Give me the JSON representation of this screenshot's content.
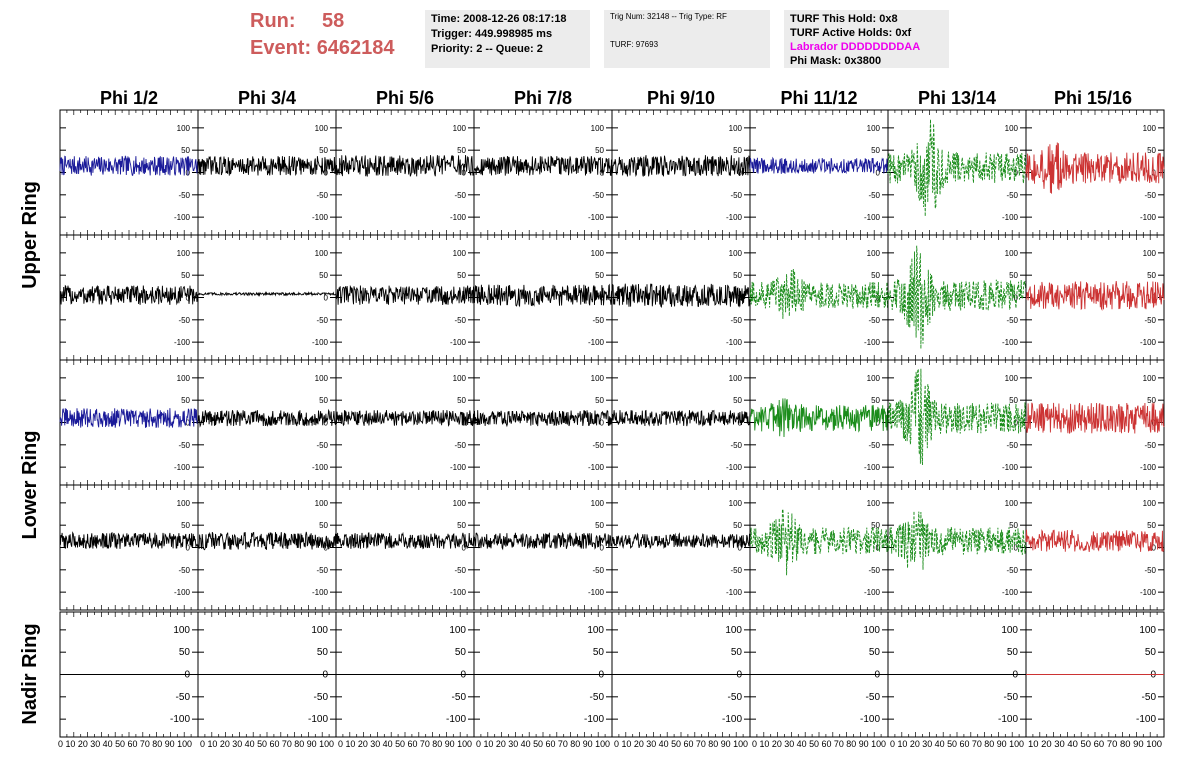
{
  "header": {
    "run_label": "Run:",
    "run_value": "58",
    "event_label": "Event:",
    "event_value": "6462184",
    "time": "Time: 2008-12-26 08:17:18",
    "trigger": "Trigger: 449.998985 ms",
    "priority_queue": "Priority: 2 -- Queue: 2",
    "trig_num_type": "Trig Num: 32148 -- Trig Type: RF",
    "turf": "TURF: 97693",
    "turf_this_hold": "TURF This Hold: 0x8",
    "turf_active_holds": "TURF Active Holds: 0xf",
    "labrador": "Labrador DDDDDDDDAA",
    "phi_mask": "Phi Mask: 0x3800"
  },
  "phi_headers": [
    "Phi 1/2",
    "Phi 3/4",
    "Phi 5/6",
    "Phi 7/8",
    "Phi 9/10",
    "Phi 11/12",
    "Phi 13/14",
    "Phi 15/16"
  ],
  "ring_labels": [
    "Upper Ring",
    "Lower Ring",
    "Nadir Ring"
  ],
  "colors": {
    "red": "#cc3333",
    "blue": "#1a1a99",
    "green": "#1a8c1a",
    "black": "#000000"
  },
  "chart_data": {
    "type": "line",
    "title": "",
    "xlim": [
      0,
      100
    ],
    "ylim": [
      -140,
      140
    ],
    "y_ticks": [
      -100,
      -50,
      0,
      50,
      100
    ],
    "x_tick_labels": "0 10 20 30 40 50 60 70 80 90 100",
    "x_tick_labels_last_panel": "10 20 30 40 50 60 70 80 90 100",
    "rows": [
      {
        "ring": "Upper Ring",
        "panels": [
          {
            "phi": "Phi 1/2",
            "color": "blue",
            "style": "solid",
            "amp": 22,
            "offset": 15
          },
          {
            "phi": "Phi 3/4",
            "color": "black",
            "style": "solid",
            "amp": 22,
            "offset": 15
          },
          {
            "phi": "Phi 5/6",
            "color": "black",
            "style": "solid",
            "amp": 24,
            "offset": 15
          },
          {
            "phi": "Phi 7/8",
            "color": "black",
            "style": "solid",
            "amp": 22,
            "offset": 15
          },
          {
            "phi": "Phi 9/10",
            "color": "black",
            "style": "solid",
            "amp": 24,
            "offset": 15
          },
          {
            "phi": "Phi 11/12",
            "color": "blue",
            "style": "solid",
            "amp": 18,
            "offset": 15
          },
          {
            "phi": "Phi 13/14",
            "color": "green",
            "style": "dashed",
            "amp": 35,
            "offset": 10,
            "peak": 30,
            "peak_amp": 120
          },
          {
            "phi": "Phi 15/16",
            "color": "red",
            "style": "solid",
            "amp": 35,
            "offset": 10,
            "peak": 20,
            "peak_amp": 60
          }
        ]
      },
      {
        "ring": "Upper Ring",
        "panels": [
          {
            "phi": "Phi 1/2",
            "color": "black",
            "style": "solid",
            "amp": 22,
            "offset": 5
          },
          {
            "phi": "Phi 3/4",
            "color": "black",
            "style": "solid",
            "amp": 3,
            "offset": 8
          },
          {
            "phi": "Phi 5/6",
            "color": "black",
            "style": "solid",
            "amp": 22,
            "offset": 5
          },
          {
            "phi": "Phi 7/8",
            "color": "black",
            "style": "solid",
            "amp": 24,
            "offset": 5
          },
          {
            "phi": "Phi 9/10",
            "color": "black",
            "style": "solid",
            "amp": 26,
            "offset": 5
          },
          {
            "phi": "Phi 11/12",
            "color": "green",
            "style": "dashed",
            "amp": 30,
            "offset": 5,
            "peak": 28,
            "peak_amp": 65
          },
          {
            "phi": "Phi 13/14",
            "color": "green",
            "style": "dashed",
            "amp": 35,
            "offset": 5,
            "peak": 22,
            "peak_amp": 130
          },
          {
            "phi": "Phi 15/16",
            "color": "red",
            "style": "solid",
            "amp": 32,
            "offset": 5
          }
        ]
      },
      {
        "ring": "Lower Ring",
        "panels": [
          {
            "phi": "Phi 1/2",
            "color": "blue",
            "style": "solid",
            "amp": 22,
            "offset": 10
          },
          {
            "phi": "Phi 3/4",
            "color": "black",
            "style": "solid",
            "amp": 18,
            "offset": 10
          },
          {
            "phi": "Phi 5/6",
            "color": "black",
            "style": "solid",
            "amp": 18,
            "offset": 10
          },
          {
            "phi": "Phi 7/8",
            "color": "black",
            "style": "solid",
            "amp": 18,
            "offset": 10
          },
          {
            "phi": "Phi 9/10",
            "color": "black",
            "style": "solid",
            "amp": 18,
            "offset": 10
          },
          {
            "phi": "Phi 11/12",
            "color": "green",
            "style": "solid",
            "amp": 30,
            "offset": 10,
            "peak": 25,
            "peak_amp": 45
          },
          {
            "phi": "Phi 13/14",
            "color": "green",
            "style": "dashed",
            "amp": 35,
            "offset": 10,
            "peak": 22,
            "peak_amp": 120
          },
          {
            "phi": "Phi 15/16",
            "color": "red",
            "style": "solid",
            "amp": 35,
            "offset": 10
          }
        ]
      },
      {
        "ring": "Lower Ring",
        "panels": [
          {
            "phi": "Phi 1/2",
            "color": "black",
            "style": "solid",
            "amp": 18,
            "offset": 15
          },
          {
            "phi": "Phi 3/4",
            "color": "black",
            "style": "solid",
            "amp": 20,
            "offset": 15
          },
          {
            "phi": "Phi 5/6",
            "color": "black",
            "style": "solid",
            "amp": 18,
            "offset": 15
          },
          {
            "phi": "Phi 7/8",
            "color": "black",
            "style": "solid",
            "amp": 18,
            "offset": 15
          },
          {
            "phi": "Phi 9/10",
            "color": "black",
            "style": "solid",
            "amp": 16,
            "offset": 15
          },
          {
            "phi": "Phi 11/12",
            "color": "green",
            "style": "dashed",
            "amp": 30,
            "offset": 15,
            "peak": 25,
            "peak_amp": 80
          },
          {
            "phi": "Phi 13/14",
            "color": "green",
            "style": "dashed",
            "amp": 32,
            "offset": 15,
            "peak": 20,
            "peak_amp": 85
          },
          {
            "phi": "Phi 15/16",
            "color": "red",
            "style": "solid",
            "amp": 25,
            "offset": 15
          }
        ]
      },
      {
        "ring": "Nadir Ring",
        "panels": [
          {
            "phi": "Phi 1/2",
            "color": "black",
            "style": "flat",
            "amp": 0,
            "offset": 0
          },
          {
            "phi": "Phi 3/4",
            "color": "black",
            "style": "flat",
            "amp": 0,
            "offset": 0
          },
          {
            "phi": "Phi 5/6",
            "color": "black",
            "style": "flat",
            "amp": 0,
            "offset": 0
          },
          {
            "phi": "Phi 7/8",
            "color": "black",
            "style": "flat",
            "amp": 0,
            "offset": 0
          },
          {
            "phi": "Phi 9/10",
            "color": "black",
            "style": "flat",
            "amp": 0,
            "offset": 0
          },
          {
            "phi": "Phi 11/12",
            "color": "black",
            "style": "flat",
            "amp": 0,
            "offset": 0
          },
          {
            "phi": "Phi 13/14",
            "color": "black",
            "style": "flat",
            "amp": 0,
            "offset": 0
          },
          {
            "phi": "Phi 15/16",
            "color": "red",
            "style": "flat",
            "amp": 0,
            "offset": 0
          }
        ]
      }
    ]
  }
}
